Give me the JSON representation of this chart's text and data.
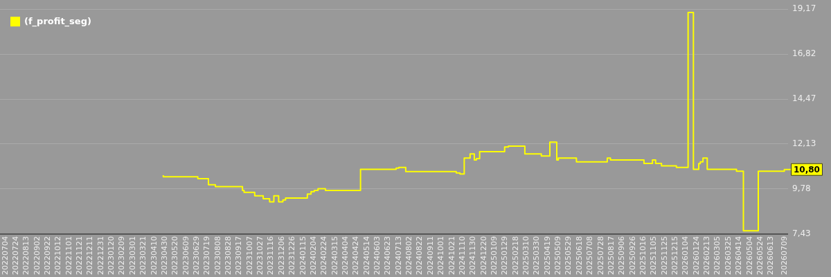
{
  "chart_data": {
    "type": "step",
    "legend": "top left",
    "grid": "y",
    "tick_labels": "xy",
    "x": [
      "2023-04-27",
      "2023-05-06",
      "2023-07-01",
      "2023-07-21",
      "2023-08-03",
      "2023-08-10",
      "2023-09-23",
      "2023-09-26",
      "2023-10-16",
      "2023-11-01",
      "2023-11-13",
      "2023-11-21",
      "2023-11-30",
      "2023-12-08",
      "2023-12-13",
      "2024-01-23",
      "2024-01-30",
      "2024-02-05",
      "2024-02-12",
      "2024-02-26",
      "2024-05-02",
      "2024-07-08",
      "2024-07-13",
      "2024-07-26",
      "2024-10-29",
      "2024-11-05",
      "2024-11-13",
      "2024-11-24",
      "2024-12-02",
      "2024-12-06",
      "2024-12-12",
      "2025-01-28",
      "2025-02-04",
      "2025-02-12",
      "2025-03-07",
      "2025-04-07",
      "2025-04-13",
      "2025-04-23",
      "2025-05-06",
      "2025-05-09",
      "2025-05-12",
      "2025-06-12",
      "2025-08-09",
      "2025-08-15",
      "2025-10-17",
      "2025-11-02",
      "2025-11-08",
      "2025-11-19",
      "2025-11-23",
      "2025-12-17",
      "2026-01-08",
      "2026-01-18",
      "2026-01-20",
      "2026-01-28",
      "2026-01-31",
      "2026-02-05",
      "2026-02-13",
      "2026-04-09",
      "2026-04-22",
      "2026-05-20",
      "2026-05-21",
      "2026-07-08",
      "2026-07-09"
    ],
    "series": [
      {
        "name": "(f_profit_seg)",
        "color": "#ffff00",
        "values": [
          10.5,
          10.42,
          10.42,
          10.32,
          10.01,
          9.91,
          9.91,
          9.71,
          9.61,
          9.43,
          9.27,
          9.11,
          9.43,
          9.11,
          9.21,
          9.31,
          9.52,
          9.64,
          9.71,
          9.8,
          9.71,
          10.81,
          10.87,
          10.91,
          10.69,
          10.62,
          10.57,
          11.4,
          11.61,
          11.3,
          11.37,
          11.73,
          11.98,
          12.02,
          12.02,
          11.61,
          11.51,
          11.51,
          12.23,
          11.3,
          11.4,
          11.4,
          11.2,
          11.4,
          11.3,
          11.12,
          11.3,
          11.12,
          10.99,
          10.99,
          10.91,
          19.0,
          10.81,
          10.81,
          11.11,
          11.2,
          11.4,
          10.81,
          10.71,
          7.6,
          10.71,
          10.71,
          10.8
        ]
      }
    ],
    "xlim": [
      "2022-06-24",
      "2026-07-15"
    ],
    "xticks": [
      {
        "value": "2022-07-04",
        "label": "20220704"
      },
      {
        "value": "2022-07-24",
        "label": "20220724"
      },
      {
        "value": "2022-08-13",
        "label": "20220813"
      },
      {
        "value": "2022-09-02",
        "label": "20220902"
      },
      {
        "value": "2022-09-22",
        "label": "20220922"
      },
      {
        "value": "2022-10-12",
        "label": "20221012"
      },
      {
        "value": "2022-11-01",
        "label": "20221101"
      },
      {
        "value": "2022-11-21",
        "label": "20221121"
      },
      {
        "value": "2022-12-11",
        "label": "20221211"
      },
      {
        "value": "2022-12-31",
        "label": "20221231"
      },
      {
        "value": "2023-01-20",
        "label": "20230120"
      },
      {
        "value": "2023-02-09",
        "label": "20230209"
      },
      {
        "value": "2023-03-01",
        "label": "20230301"
      },
      {
        "value": "2023-03-21",
        "label": "20230321"
      },
      {
        "value": "2023-04-10",
        "label": "20230410"
      },
      {
        "value": "2023-04-30",
        "label": "20230430"
      },
      {
        "value": "2023-05-20",
        "label": "20230520"
      },
      {
        "value": "2023-06-09",
        "label": "20230609"
      },
      {
        "value": "2023-06-29",
        "label": "20230629"
      },
      {
        "value": "2023-07-19",
        "label": "20230719"
      },
      {
        "value": "2023-08-08",
        "label": "20230808"
      },
      {
        "value": "2023-08-28",
        "label": "20230828"
      },
      {
        "value": "2023-09-17",
        "label": "20230917"
      },
      {
        "value": "2023-10-07",
        "label": "20231007"
      },
      {
        "value": "2023-10-27",
        "label": "20231027"
      },
      {
        "value": "2023-11-16",
        "label": "20231116"
      },
      {
        "value": "2023-12-06",
        "label": "20231206"
      },
      {
        "value": "2023-12-26",
        "label": "20231226"
      },
      {
        "value": "2024-01-15",
        "label": "20240115"
      },
      {
        "value": "2024-02-04",
        "label": "20240204"
      },
      {
        "value": "2024-02-24",
        "label": "20240224"
      },
      {
        "value": "2024-03-15",
        "label": "20240315"
      },
      {
        "value": "2024-04-04",
        "label": "20240404"
      },
      {
        "value": "2024-04-24",
        "label": "20240424"
      },
      {
        "value": "2024-05-14",
        "label": "20240514"
      },
      {
        "value": "2024-06-03",
        "label": "20240603"
      },
      {
        "value": "2024-06-23",
        "label": "20240623"
      },
      {
        "value": "2024-07-13",
        "label": "20240713"
      },
      {
        "value": "2024-08-02",
        "label": "20240802"
      },
      {
        "value": "2024-08-22",
        "label": "20240822"
      },
      {
        "value": "2024-09-11",
        "label": "20240911"
      },
      {
        "value": "2024-10-01",
        "label": "20241001"
      },
      {
        "value": "2024-10-21",
        "label": "20241021"
      },
      {
        "value": "2024-11-10",
        "label": "20241110"
      },
      {
        "value": "2024-11-30",
        "label": "20241130"
      },
      {
        "value": "2024-12-20",
        "label": "20241220"
      },
      {
        "value": "2025-01-09",
        "label": "20250109"
      },
      {
        "value": "2025-01-29",
        "label": "20250129"
      },
      {
        "value": "2025-02-18",
        "label": "20250218"
      },
      {
        "value": "2025-03-10",
        "label": "20250310"
      },
      {
        "value": "2025-03-30",
        "label": "20250330"
      },
      {
        "value": "2025-04-19",
        "label": "20250419"
      },
      {
        "value": "2025-05-09",
        "label": "20250509"
      },
      {
        "value": "2025-05-29",
        "label": "20250529"
      },
      {
        "value": "2025-06-18",
        "label": "20250618"
      },
      {
        "value": "2025-07-08",
        "label": "20250708"
      },
      {
        "value": "2025-07-28",
        "label": "20250728"
      },
      {
        "value": "2025-08-17",
        "label": "20250817"
      },
      {
        "value": "2025-09-06",
        "label": "20250906"
      },
      {
        "value": "2025-09-26",
        "label": "20250926"
      },
      {
        "value": "2025-10-16",
        "label": "20251016"
      },
      {
        "value": "2025-11-05",
        "label": "20251105"
      },
      {
        "value": "2025-11-25",
        "label": "20251125"
      },
      {
        "value": "2025-12-15",
        "label": "20251215"
      },
      {
        "value": "2026-01-04",
        "label": "20260104"
      },
      {
        "value": "2026-01-24",
        "label": "20260124"
      },
      {
        "value": "2026-02-13",
        "label": "20260213"
      },
      {
        "value": "2026-03-05",
        "label": "20260305"
      },
      {
        "value": "2026-03-25",
        "label": "20260325"
      },
      {
        "value": "2026-04-14",
        "label": "20260414"
      },
      {
        "value": "2026-05-04",
        "label": "20260504"
      },
      {
        "value": "2026-05-24",
        "label": "20260524"
      },
      {
        "value": "2026-06-13",
        "label": "20260613"
      },
      {
        "value": "2026-07-09",
        "label": "20260709"
      }
    ],
    "ylim": [
      7.43,
      19.17
    ],
    "yticks": [
      {
        "value": 7.43,
        "label": "7,43"
      },
      {
        "value": 9.78,
        "label": "9,78"
      },
      {
        "value": 12.13,
        "label": "12,13"
      },
      {
        "value": 14.47,
        "label": "14,47"
      },
      {
        "value": 16.82,
        "label": "16,82"
      },
      {
        "value": 19.17,
        "label": "19,17"
      }
    ],
    "annotations": [
      {
        "text": "10,80",
        "x": "2026-07-09",
        "y": 10.8
      }
    ]
  }
}
